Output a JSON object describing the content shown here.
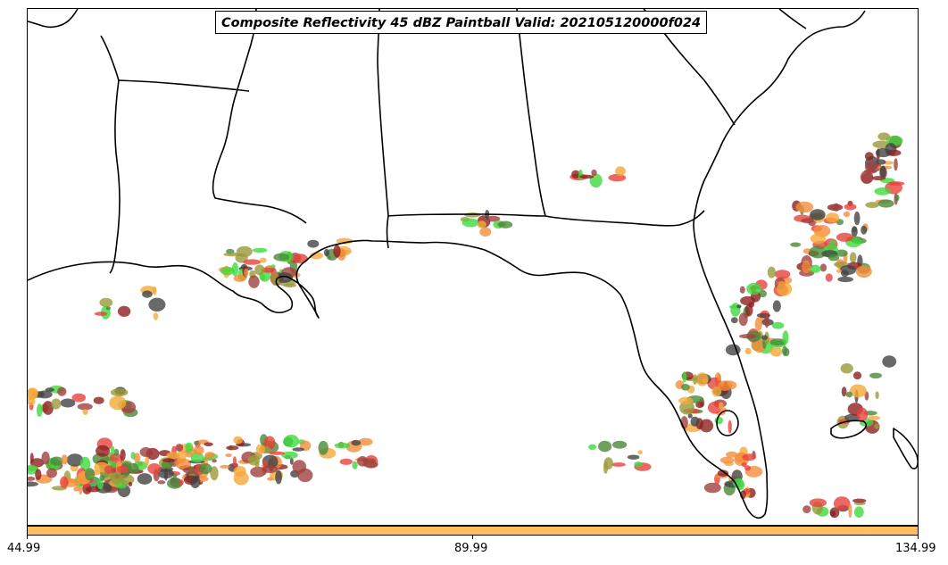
{
  "title": "Composite Reflectivity 45 dBZ Paintball Valid: 202105120000f024",
  "colorbar": {
    "color": "#fdbf60",
    "ticks": [
      "44.99",
      "89.99",
      "134.99"
    ]
  },
  "member_colors": [
    "#e8413c",
    "#f58c3a",
    "#8f1f1f",
    "#3fd93f",
    "#9a9a3a",
    "#4a8a3a",
    "#a04040",
    "#f5a93a",
    "#444444"
  ],
  "map": {
    "region": "Southeastern United States and Gulf of Mexico",
    "features": [
      "coastline",
      "state-borders"
    ]
  }
}
